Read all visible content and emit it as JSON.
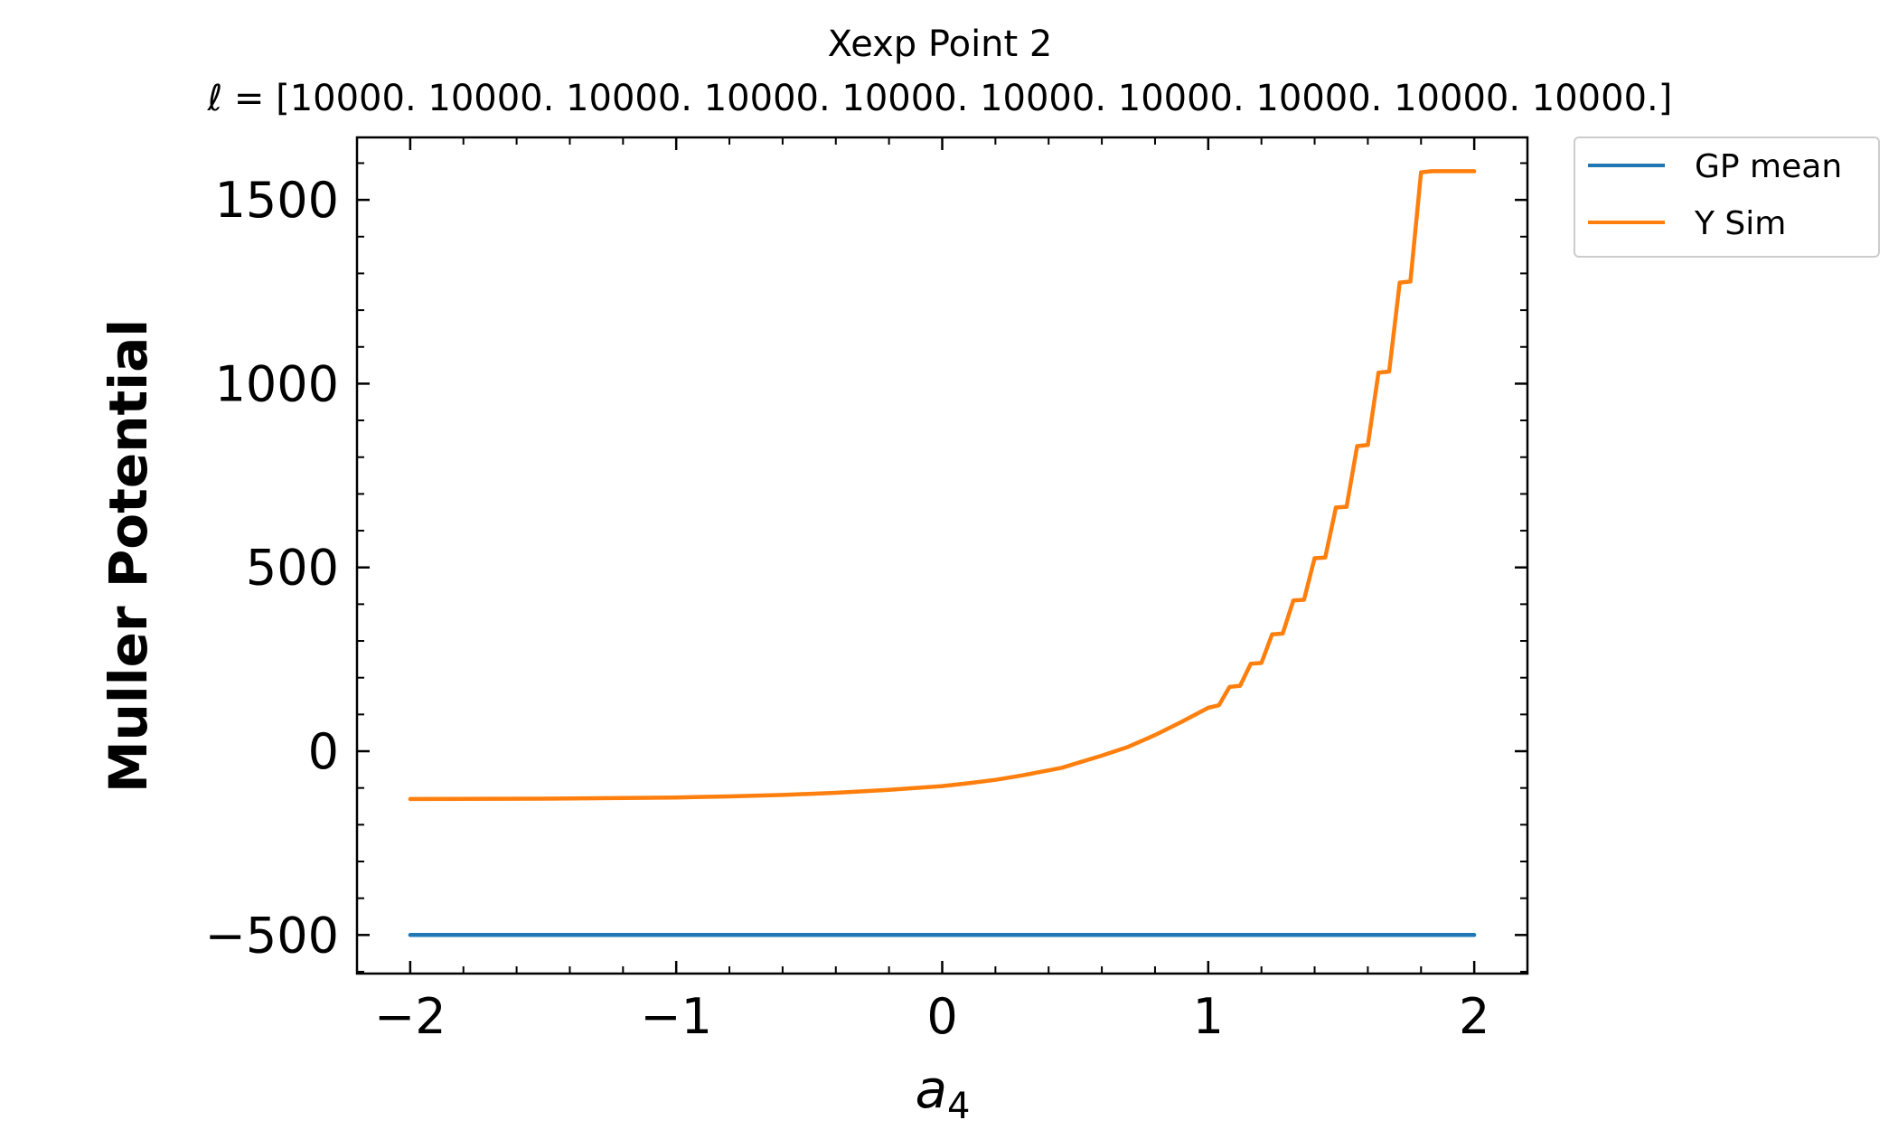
{
  "chart_data": {
    "type": "line",
    "title": "Xexp Point 2",
    "subtitle": "ℓ = [10000. 10000. 10000. 10000. 10000. 10000. 10000. 10000. 10000. 10000.]",
    "xlabel_main": "a",
    "xlabel_sub": "4",
    "ylabel": "Muller Potential",
    "xlim": [
      -2.2,
      2.2
    ],
    "ylim": [
      -605,
      1670
    ],
    "xticks": [
      {
        "value": -2,
        "label": "−2"
      },
      {
        "value": -1,
        "label": "−1"
      },
      {
        "value": 0,
        "label": "0"
      },
      {
        "value": 1,
        "label": "1"
      },
      {
        "value": 2,
        "label": "2"
      }
    ],
    "yticks": [
      {
        "value": -500,
        "label": "−500"
      },
      {
        "value": 0,
        "label": "0"
      },
      {
        "value": 500,
        "label": "500"
      },
      {
        "value": 1000,
        "label": "1000"
      },
      {
        "value": 1500,
        "label": "1500"
      }
    ],
    "grid": false,
    "legend_position": "outside-upper-right",
    "series": [
      {
        "name": "GP mean",
        "color": "#1f77b4",
        "x": [
          -2,
          2
        ],
        "y": [
          -500,
          -500
        ]
      },
      {
        "name": "Y Sim",
        "color": "#ff7f0e",
        "x": [
          -2.0,
          -1.5,
          -1.0,
          -0.8,
          -0.6,
          -0.4,
          -0.2,
          0.0,
          0.1,
          0.2,
          0.3,
          0.4,
          0.45,
          0.5,
          0.6,
          0.7,
          0.8,
          0.9,
          1.0,
          1.04,
          1.08,
          1.12,
          1.16,
          1.2,
          1.24,
          1.28,
          1.32,
          1.36,
          1.4,
          1.44,
          1.48,
          1.52,
          1.56,
          1.6,
          1.64,
          1.68,
          1.72,
          1.76,
          1.8,
          1.84,
          1.88,
          1.92,
          1.96,
          2.0
        ],
        "y": [
          -130,
          -129,
          -126,
          -123,
          -119,
          -113,
          -105,
          -95,
          -87,
          -78,
          -66,
          -52,
          -45,
          -34,
          -12,
          12,
          44,
          80,
          118,
          125,
          175,
          178,
          238,
          240,
          318,
          320,
          410,
          412,
          525,
          527,
          663,
          665,
          830,
          833,
          1030,
          1033,
          1275,
          1278,
          1575,
          1578,
          1578,
          1578,
          1578,
          1578
        ]
      }
    ]
  }
}
